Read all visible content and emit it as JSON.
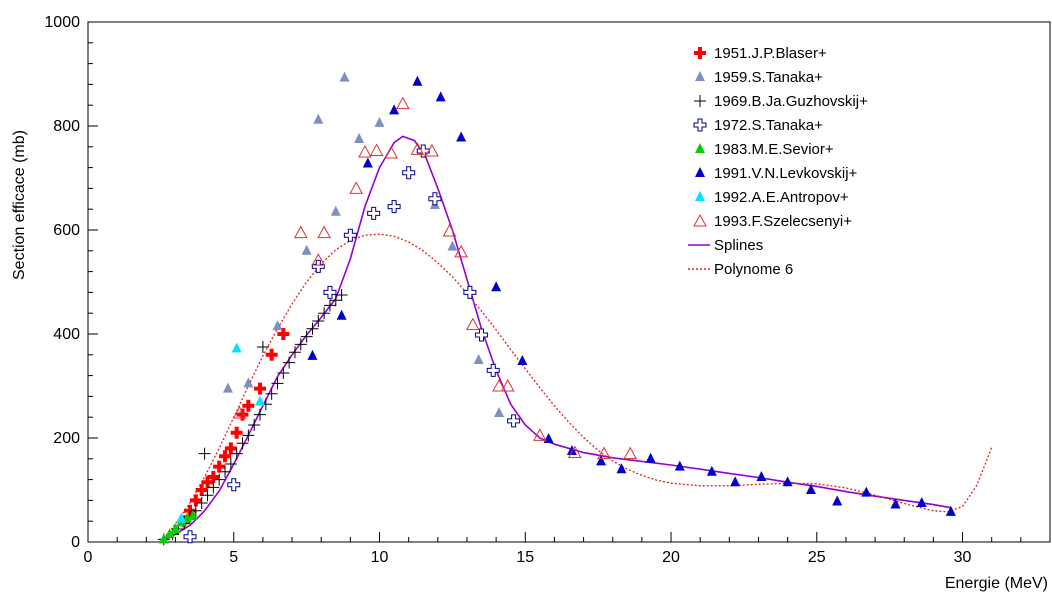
{
  "chart_data": {
    "type": "scatter",
    "title": "",
    "xlabel": "Energie (MeV)",
    "ylabel": "Section efficace (mb)",
    "xlim": [
      0,
      33
    ],
    "ylim": [
      0,
      1000
    ],
    "x_ticks": [
      0,
      5,
      10,
      15,
      20,
      25,
      30
    ],
    "y_ticks": [
      0,
      200,
      400,
      600,
      800,
      1000
    ],
    "grid": false,
    "legend_position": "top-right",
    "series": [
      {
        "name": "1951.J.P.Blaser+",
        "marker": "filled-cross",
        "color": "#ff0000",
        "points": [
          {
            "x": 3.3,
            "y": 40
          },
          {
            "x": 3.5,
            "y": 60
          },
          {
            "x": 3.7,
            "y": 80
          },
          {
            "x": 3.9,
            "y": 100
          },
          {
            "x": 4.1,
            "y": 115
          },
          {
            "x": 4.3,
            "y": 125
          },
          {
            "x": 4.5,
            "y": 145
          },
          {
            "x": 4.7,
            "y": 165
          },
          {
            "x": 4.9,
            "y": 180
          },
          {
            "x": 5.1,
            "y": 210
          },
          {
            "x": 5.3,
            "y": 245
          },
          {
            "x": 5.5,
            "y": 262
          },
          {
            "x": 5.9,
            "y": 295
          },
          {
            "x": 6.3,
            "y": 360
          },
          {
            "x": 6.7,
            "y": 400
          }
        ]
      },
      {
        "name": "1959.S.Tanaka+",
        "marker": "triangle",
        "color": "#7f8fbf",
        "points": [
          {
            "x": 4.8,
            "y": 295
          },
          {
            "x": 5.5,
            "y": 305
          },
          {
            "x": 6.5,
            "y": 415
          },
          {
            "x": 7.5,
            "y": 560
          },
          {
            "x": 7.9,
            "y": 812
          },
          {
            "x": 8.5,
            "y": 635
          },
          {
            "x": 8.8,
            "y": 893
          },
          {
            "x": 9.3,
            "y": 775
          },
          {
            "x": 10.0,
            "y": 806
          },
          {
            "x": 11.9,
            "y": 648
          },
          {
            "x": 12.5,
            "y": 568
          },
          {
            "x": 13.4,
            "y": 350
          },
          {
            "x": 14.1,
            "y": 248
          }
        ]
      },
      {
        "name": "1969.B.Ja.Guzhovskij+",
        "marker": "plus",
        "color": "#000000",
        "points": [
          {
            "x": 2.6,
            "y": 5
          },
          {
            "x": 2.9,
            "y": 15
          },
          {
            "x": 3.1,
            "y": 25
          },
          {
            "x": 3.3,
            "y": 35
          },
          {
            "x": 3.5,
            "y": 48
          },
          {
            "x": 3.7,
            "y": 60
          },
          {
            "x": 3.9,
            "y": 75
          },
          {
            "x": 4.0,
            "y": 170
          },
          {
            "x": 4.1,
            "y": 90
          },
          {
            "x": 4.3,
            "y": 105
          },
          {
            "x": 4.5,
            "y": 120
          },
          {
            "x": 4.7,
            "y": 135
          },
          {
            "x": 4.9,
            "y": 150
          },
          {
            "x": 5.1,
            "y": 170
          },
          {
            "x": 5.3,
            "y": 190
          },
          {
            "x": 5.5,
            "y": 205
          },
          {
            "x": 5.7,
            "y": 225
          },
          {
            "x": 5.9,
            "y": 245
          },
          {
            "x": 6.0,
            "y": 375
          },
          {
            "x": 6.1,
            "y": 265
          },
          {
            "x": 6.3,
            "y": 285
          },
          {
            "x": 6.5,
            "y": 305
          },
          {
            "x": 6.7,
            "y": 325
          },
          {
            "x": 6.9,
            "y": 345
          },
          {
            "x": 7.1,
            "y": 365
          },
          {
            "x": 7.3,
            "y": 380
          },
          {
            "x": 7.5,
            "y": 395
          },
          {
            "x": 7.7,
            "y": 410
          },
          {
            "x": 7.9,
            "y": 425
          },
          {
            "x": 8.1,
            "y": 440
          },
          {
            "x": 8.3,
            "y": 455
          },
          {
            "x": 8.5,
            "y": 465
          },
          {
            "x": 8.7,
            "y": 475
          }
        ]
      },
      {
        "name": "1972.S.Tanaka+",
        "marker": "open-cross",
        "color": "#00008b",
        "points": [
          {
            "x": 3.5,
            "y": 10
          },
          {
            "x": 5.0,
            "y": 110
          },
          {
            "x": 7.9,
            "y": 530
          },
          {
            "x": 8.3,
            "y": 480
          },
          {
            "x": 9.0,
            "y": 590
          },
          {
            "x": 9.8,
            "y": 632
          },
          {
            "x": 10.5,
            "y": 645
          },
          {
            "x": 11.0,
            "y": 710
          },
          {
            "x": 11.5,
            "y": 752
          },
          {
            "x": 11.9,
            "y": 660
          },
          {
            "x": 13.1,
            "y": 480
          },
          {
            "x": 13.5,
            "y": 398
          },
          {
            "x": 13.9,
            "y": 330
          },
          {
            "x": 14.6,
            "y": 233
          }
        ]
      },
      {
        "name": "1983.M.E.Sevior+",
        "marker": "triangle",
        "color": "#00d000",
        "points": [
          {
            "x": 2.6,
            "y": 5
          },
          {
            "x": 2.8,
            "y": 15
          },
          {
            "x": 3.0,
            "y": 25
          },
          {
            "x": 3.2,
            "y": 38
          },
          {
            "x": 3.4,
            "y": 45
          },
          {
            "x": 3.6,
            "y": 50
          }
        ]
      },
      {
        "name": "1991.V.N.Levkovskij+",
        "marker": "triangle",
        "color": "#0000cc",
        "points": [
          {
            "x": 7.7,
            "y": 358
          },
          {
            "x": 8.7,
            "y": 435
          },
          {
            "x": 9.6,
            "y": 728
          },
          {
            "x": 10.5,
            "y": 830
          },
          {
            "x": 11.3,
            "y": 885
          },
          {
            "x": 12.1,
            "y": 855
          },
          {
            "x": 12.8,
            "y": 778
          },
          {
            "x": 14.0,
            "y": 490
          },
          {
            "x": 14.9,
            "y": 348
          },
          {
            "x": 15.8,
            "y": 198
          },
          {
            "x": 16.6,
            "y": 175
          },
          {
            "x": 17.6,
            "y": 155
          },
          {
            "x": 18.3,
            "y": 140
          },
          {
            "x": 19.3,
            "y": 160
          },
          {
            "x": 20.3,
            "y": 145
          },
          {
            "x": 21.4,
            "y": 135
          },
          {
            "x": 22.2,
            "y": 115
          },
          {
            "x": 23.1,
            "y": 125
          },
          {
            "x": 24.0,
            "y": 115
          },
          {
            "x": 24.8,
            "y": 100
          },
          {
            "x": 25.7,
            "y": 78
          },
          {
            "x": 26.7,
            "y": 95
          },
          {
            "x": 27.7,
            "y": 72
          },
          {
            "x": 28.6,
            "y": 75
          },
          {
            "x": 29.6,
            "y": 58
          }
        ]
      },
      {
        "name": "1992.A.E.Antropov+",
        "marker": "triangle",
        "color": "#00e5ff",
        "points": [
          {
            "x": 3.2,
            "y": 45
          },
          {
            "x": 5.1,
            "y": 372
          },
          {
            "x": 5.9,
            "y": 270
          }
        ]
      },
      {
        "name": "1993.F.Szelecsenyi+",
        "marker": "open-triangle",
        "color": "#e03030",
        "points": [
          {
            "x": 5.2,
            "y": 248
          },
          {
            "x": 7.3,
            "y": 595
          },
          {
            "x": 7.9,
            "y": 542
          },
          {
            "x": 8.1,
            "y": 595
          },
          {
            "x": 9.2,
            "y": 680
          },
          {
            "x": 9.5,
            "y": 750
          },
          {
            "x": 9.9,
            "y": 753
          },
          {
            "x": 10.4,
            "y": 748
          },
          {
            "x": 10.8,
            "y": 843
          },
          {
            "x": 11.3,
            "y": 755
          },
          {
            "x": 11.8,
            "y": 752
          },
          {
            "x": 12.4,
            "y": 598
          },
          {
            "x": 12.8,
            "y": 558
          },
          {
            "x": 13.2,
            "y": 418
          },
          {
            "x": 14.1,
            "y": 300
          },
          {
            "x": 14.4,
            "y": 300
          },
          {
            "x": 15.5,
            "y": 205
          },
          {
            "x": 16.7,
            "y": 172
          },
          {
            "x": 17.7,
            "y": 170
          },
          {
            "x": 18.6,
            "y": 170
          }
        ]
      },
      {
        "name": "Splines",
        "marker": "line",
        "color": "#9400d3",
        "points": [
          {
            "x": 2.5,
            "y": 0
          },
          {
            "x": 3.0,
            "y": 15
          },
          {
            "x": 3.5,
            "y": 32
          },
          {
            "x": 4.0,
            "y": 60
          },
          {
            "x": 4.5,
            "y": 98
          },
          {
            "x": 5.0,
            "y": 150
          },
          {
            "x": 5.5,
            "y": 205
          },
          {
            "x": 6.0,
            "y": 262
          },
          {
            "x": 6.5,
            "y": 318
          },
          {
            "x": 7.0,
            "y": 360
          },
          {
            "x": 7.5,
            "y": 398
          },
          {
            "x": 8.0,
            "y": 432
          },
          {
            "x": 8.5,
            "y": 468
          },
          {
            "x": 9.0,
            "y": 545
          },
          {
            "x": 9.5,
            "y": 645
          },
          {
            "x": 10.0,
            "y": 720
          },
          {
            "x": 10.5,
            "y": 768
          },
          {
            "x": 10.8,
            "y": 780
          },
          {
            "x": 11.2,
            "y": 772
          },
          {
            "x": 11.6,
            "y": 738
          },
          {
            "x": 12.0,
            "y": 680
          },
          {
            "x": 12.5,
            "y": 600
          },
          {
            "x": 13.0,
            "y": 505
          },
          {
            "x": 13.5,
            "y": 410
          },
          {
            "x": 14.0,
            "y": 330
          },
          {
            "x": 14.5,
            "y": 265
          },
          {
            "x": 15.0,
            "y": 225
          },
          {
            "x": 15.5,
            "y": 200
          },
          {
            "x": 16.0,
            "y": 188
          },
          {
            "x": 17.0,
            "y": 172
          },
          {
            "x": 18.0,
            "y": 162
          },
          {
            "x": 19.0,
            "y": 155
          },
          {
            "x": 20.0,
            "y": 148
          },
          {
            "x": 21.0,
            "y": 140
          },
          {
            "x": 22.0,
            "y": 132
          },
          {
            "x": 23.0,
            "y": 124
          },
          {
            "x": 24.0,
            "y": 115
          },
          {
            "x": 25.0,
            "y": 107
          },
          {
            "x": 26.0,
            "y": 97
          },
          {
            "x": 27.0,
            "y": 88
          },
          {
            "x": 28.0,
            "y": 80
          },
          {
            "x": 29.0,
            "y": 72
          },
          {
            "x": 29.6,
            "y": 66
          }
        ]
      },
      {
        "name": "Polynome 6",
        "marker": "dashed-line",
        "color": "#e02020",
        "points": [
          {
            "x": 2.5,
            "y": 0
          },
          {
            "x": 3.0,
            "y": 35
          },
          {
            "x": 3.5,
            "y": 75
          },
          {
            "x": 4.0,
            "y": 125
          },
          {
            "x": 4.5,
            "y": 180
          },
          {
            "x": 5.0,
            "y": 240
          },
          {
            "x": 5.5,
            "y": 300
          },
          {
            "x": 6.0,
            "y": 358
          },
          {
            "x": 6.5,
            "y": 410
          },
          {
            "x": 7.0,
            "y": 458
          },
          {
            "x": 7.5,
            "y": 500
          },
          {
            "x": 8.0,
            "y": 535
          },
          {
            "x": 8.5,
            "y": 562
          },
          {
            "x": 9.0,
            "y": 580
          },
          {
            "x": 9.5,
            "y": 590
          },
          {
            "x": 10.0,
            "y": 592
          },
          {
            "x": 10.5,
            "y": 588
          },
          {
            "x": 11.0,
            "y": 577
          },
          {
            "x": 11.5,
            "y": 560
          },
          {
            "x": 12.0,
            "y": 537
          },
          {
            "x": 12.5,
            "y": 510
          },
          {
            "x": 13.0,
            "y": 478
          },
          {
            "x": 13.5,
            "y": 444
          },
          {
            "x": 14.0,
            "y": 408
          },
          {
            "x": 14.5,
            "y": 370
          },
          {
            "x": 15.0,
            "y": 333
          },
          {
            "x": 15.5,
            "y": 297
          },
          {
            "x": 16.0,
            "y": 262
          },
          {
            "x": 16.5,
            "y": 230
          },
          {
            "x": 17.0,
            "y": 201
          },
          {
            "x": 17.5,
            "y": 176
          },
          {
            "x": 18.0,
            "y": 156
          },
          {
            "x": 18.5,
            "y": 140
          },
          {
            "x": 19.0,
            "y": 128
          },
          {
            "x": 19.5,
            "y": 119
          },
          {
            "x": 20.0,
            "y": 113
          },
          {
            "x": 21.0,
            "y": 108
          },
          {
            "x": 22.0,
            "y": 108
          },
          {
            "x": 23.0,
            "y": 111
          },
          {
            "x": 24.0,
            "y": 113
          },
          {
            "x": 25.0,
            "y": 112
          },
          {
            "x": 26.0,
            "y": 104
          },
          {
            "x": 27.0,
            "y": 90
          },
          {
            "x": 28.0,
            "y": 74
          },
          {
            "x": 29.0,
            "y": 60
          },
          {
            "x": 29.5,
            "y": 58
          },
          {
            "x": 30.0,
            "y": 68
          },
          {
            "x": 30.5,
            "y": 110
          },
          {
            "x": 31.0,
            "y": 182
          }
        ]
      }
    ]
  }
}
